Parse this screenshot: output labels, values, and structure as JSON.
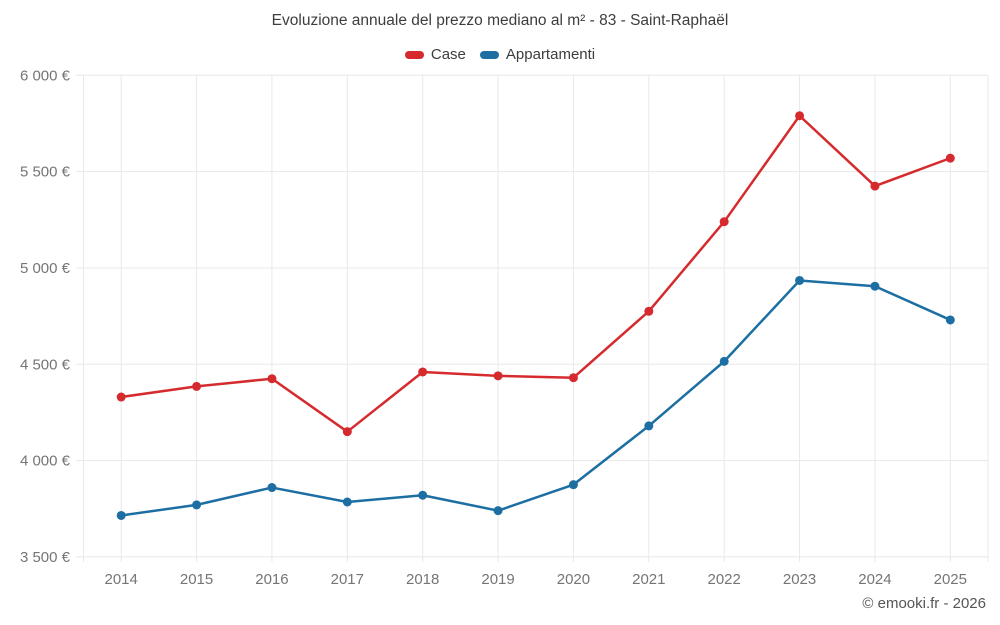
{
  "title": "Evoluzione annuale del prezzo mediano al m² - 83 - Saint-Raphaël",
  "attribution": "© emooki.fr - 2026",
  "legend": [
    {
      "label": "Case",
      "color": "#d62b2e"
    },
    {
      "label": "Appartamenti",
      "color": "#1d6fa3"
    }
  ],
  "colors": {
    "grid": "#e8e8e8",
    "tick_label": "#757575",
    "title_text": "#3d3d3d",
    "attribution_text": "#555555",
    "background": "#ffffff"
  },
  "chart_data": {
    "type": "line",
    "title": "Evoluzione annuale del prezzo mediano al m² - 83 - Saint-Raphaël",
    "categories": [
      2014,
      2015,
      2016,
      2017,
      2018,
      2019,
      2020,
      2021,
      2022,
      2023,
      2024,
      2025
    ],
    "series": [
      {
        "name": "Case",
        "color": "#d62b2e",
        "values": [
          4330,
          4385,
          4425,
          4150,
          4460,
          4440,
          4430,
          4775,
          5240,
          5790,
          5425,
          5570
        ]
      },
      {
        "name": "Appartamenti",
        "color": "#1d6fa3",
        "values": [
          3715,
          3770,
          3860,
          3785,
          3820,
          3740,
          3875,
          4180,
          4515,
          4935,
          4905,
          4730
        ]
      }
    ],
    "xlabel": "",
    "ylabel": "",
    "ylim": [
      3500,
      6000
    ],
    "ytick_step": 500,
    "ytick_labels": [
      "3 500 €",
      "4 000 €",
      "4 500 €",
      "5 000 €",
      "5 500 €",
      "6 000 €"
    ],
    "currency_suffix": " €",
    "grid": true,
    "legend_position": "top",
    "marker_radius": 4.5,
    "line_width": 2.5
  }
}
